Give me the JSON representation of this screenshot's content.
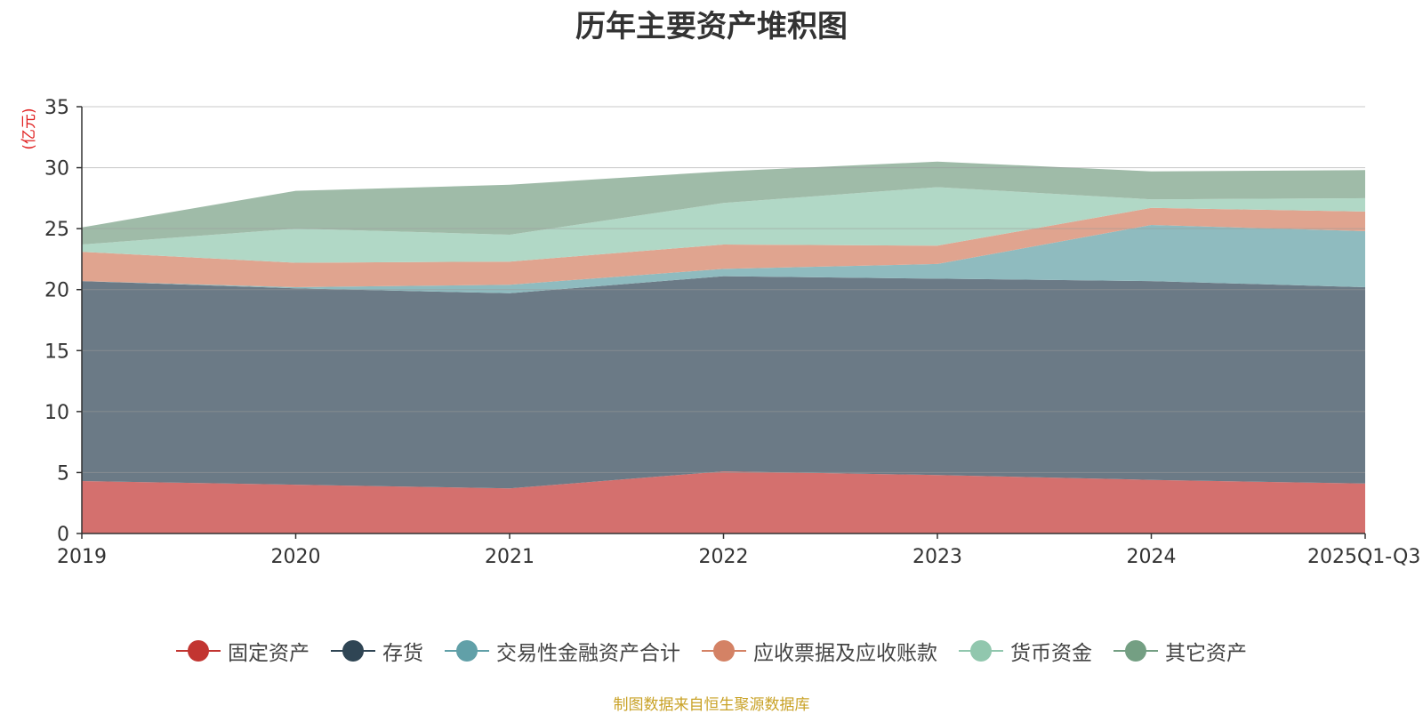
{
  "chart_data": {
    "type": "area",
    "stacked": true,
    "title": "历年主要资产堆积图",
    "ylabel": "(亿元)",
    "xlabel": "",
    "categories": [
      "2019",
      "2020",
      "2021",
      "2022",
      "2023",
      "2024",
      "2025Q1-Q3"
    ],
    "ylim": [
      0,
      35
    ],
    "yticks": [
      0,
      5,
      10,
      15,
      20,
      25,
      30,
      35
    ],
    "grid": true,
    "legend_position": "bottom",
    "series": [
      {
        "name": "固定资产",
        "color": "#c23531",
        "fill": "#d4706e",
        "values": [
          4.3,
          4.0,
          3.7,
          5.1,
          4.8,
          4.4,
          4.1
        ]
      },
      {
        "name": "存货",
        "color": "#2f4554",
        "fill": "#6b7a86",
        "values": [
          16.4,
          16.1,
          16.0,
          16.0,
          16.1,
          16.3,
          16.1
        ]
      },
      {
        "name": "交易性金融资产合计",
        "color": "#61a0a8",
        "fill": "#8fbbbf",
        "values": [
          0.0,
          0.1,
          0.7,
          0.6,
          1.2,
          4.6,
          4.6
        ]
      },
      {
        "name": "应收票据及应收账款",
        "color": "#d48265",
        "fill": "#e0a48f",
        "values": [
          2.4,
          2.0,
          1.9,
          2.0,
          1.5,
          1.4,
          1.6
        ]
      },
      {
        "name": "货币资金",
        "color": "#91c7ae",
        "fill": "#b1d8c6",
        "values": [
          0.6,
          2.8,
          2.2,
          3.4,
          4.8,
          0.7,
          1.1
        ]
      },
      {
        "name": "其它资产",
        "color": "#749f83",
        "fill": "#9fbba8",
        "values": [
          1.4,
          3.1,
          4.1,
          2.6,
          2.1,
          2.3,
          2.3
        ]
      }
    ]
  },
  "source_note": "制图数据来自恒生聚源数据库"
}
